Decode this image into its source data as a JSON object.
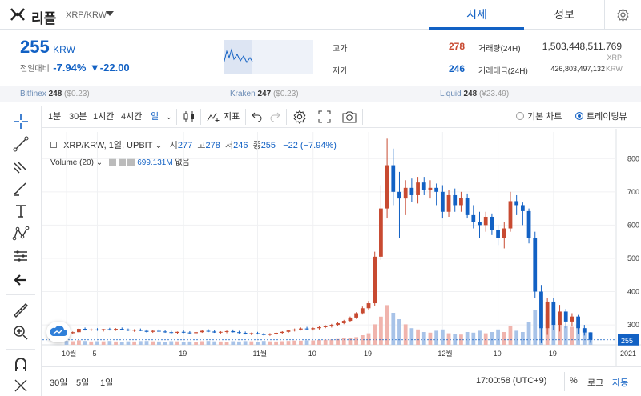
{
  "header": {
    "coin_name": "리플",
    "coin_pair": "XRP/KRW",
    "tabs": [
      {
        "label": "시세",
        "active": true
      },
      {
        "label": "정보",
        "active": false
      }
    ]
  },
  "ticker": {
    "price": "255",
    "unit": "KRW",
    "change_label": "전일대비",
    "change_pct": "-7.94%",
    "change_abs": "▼-22.00",
    "high_label": "고가",
    "high": "278",
    "low_label": "저가",
    "low": "246",
    "vol_label": "거래량(24H)",
    "vol_value": "1,503,448,511.769",
    "vol_unit": "XRP",
    "amt_label": "거래대금(24H)",
    "amt_value": "426,803,497,132",
    "amt_unit": "KRW"
  },
  "exchanges": [
    {
      "name": "Bitfinex",
      "value": "248",
      "delta": "($0.23)"
    },
    {
      "name": "Kraken",
      "value": "247",
      "delta": "($0.23)"
    },
    {
      "name": "Liquid",
      "value": "248",
      "delta": "(¥23.49)"
    }
  ],
  "toolbar": {
    "intervals": [
      "1분",
      "30분",
      "1시간",
      "4시간",
      "일"
    ],
    "indicators_label": "지표",
    "basic_chart": "기본 차트",
    "trading_view": "트레이딩뷰"
  },
  "chart_info": {
    "symbol": "XRP/KRW, 1일, UPBIT",
    "open_k": "시",
    "open": "277",
    "high_k": "고",
    "high": "278",
    "low_k": "저",
    "low": "246",
    "close_k": "종",
    "close": "255",
    "change": "−22 (−7.94%)",
    "volume_label": "Volume (20)",
    "volume_value": "699.131M",
    "volume_extra": "없음"
  },
  "bottom": {
    "ranges": [
      "30일",
      "5일",
      "1일"
    ],
    "time": "17:00:58 (UTC+9)",
    "pct": "%",
    "log": "로그",
    "auto": "자동"
  },
  "chart_data": {
    "type": "candlestick",
    "title": "XRP/KRW, 1일, UPBIT",
    "y_ticks": [
      300,
      400,
      500,
      600,
      700,
      800
    ],
    "ylim": [
      240,
      880
    ],
    "x_ticks": [
      "10월",
      "5",
      "19",
      "11월",
      "10",
      "19",
      "12월",
      "10",
      "19",
      "2021"
    ],
    "last_price": 255,
    "colors": {
      "up": "#c84a31",
      "down": "#1261c4",
      "vol_up": "#f0b4ad",
      "vol_down": "#a8c3e8"
    },
    "candles": [
      [
        277,
        279,
        272,
        275
      ],
      [
        275,
        280,
        273,
        278
      ],
      [
        278,
        290,
        276,
        288
      ],
      [
        288,
        292,
        283,
        285
      ],
      [
        285,
        289,
        281,
        286
      ],
      [
        286,
        290,
        282,
        284
      ],
      [
        284,
        288,
        280,
        287
      ],
      [
        287,
        291,
        283,
        285
      ],
      [
        285,
        290,
        282,
        288
      ],
      [
        288,
        292,
        284,
        286
      ],
      [
        286,
        289,
        281,
        283
      ],
      [
        283,
        287,
        279,
        285
      ],
      [
        285,
        289,
        281,
        282
      ],
      [
        282,
        286,
        277,
        279
      ],
      [
        279,
        284,
        276,
        282
      ],
      [
        282,
        287,
        279,
        280
      ],
      [
        280,
        284,
        276,
        278
      ],
      [
        278,
        282,
        274,
        276
      ],
      [
        276,
        280,
        272,
        279
      ],
      [
        279,
        283,
        275,
        277
      ],
      [
        277,
        281,
        273,
        275
      ],
      [
        275,
        279,
        271,
        278
      ],
      [
        278,
        284,
        276,
        282
      ],
      [
        282,
        287,
        278,
        280
      ],
      [
        280,
        284,
        276,
        277
      ],
      [
        277,
        281,
        273,
        279
      ],
      [
        279,
        283,
        275,
        281
      ],
      [
        281,
        286,
        277,
        278
      ],
      [
        278,
        282,
        274,
        276
      ],
      [
        276,
        280,
        271,
        273
      ],
      [
        273,
        277,
        269,
        275
      ],
      [
        275,
        279,
        271,
        272
      ],
      [
        272,
        276,
        268,
        270
      ],
      [
        270,
        275,
        267,
        273
      ],
      [
        273,
        278,
        270,
        276
      ],
      [
        276,
        281,
        273,
        279
      ],
      [
        279,
        285,
        276,
        283
      ],
      [
        283,
        289,
        280,
        286
      ],
      [
        286,
        292,
        283,
        289
      ],
      [
        289,
        294,
        285,
        287
      ],
      [
        287,
        292,
        283,
        290
      ],
      [
        290,
        296,
        286,
        293
      ],
      [
        293,
        299,
        290,
        296
      ],
      [
        296,
        303,
        292,
        300
      ],
      [
        300,
        308,
        296,
        305
      ],
      [
        305,
        315,
        302,
        312
      ],
      [
        312,
        325,
        309,
        322
      ],
      [
        322,
        338,
        318,
        335
      ],
      [
        335,
        355,
        331,
        350
      ],
      [
        350,
        372,
        346,
        365
      ],
      [
        365,
        520,
        358,
        505
      ],
      [
        505,
        720,
        495,
        650
      ],
      [
        650,
        860,
        620,
        780
      ],
      [
        780,
        830,
        660,
        700
      ],
      [
        700,
        760,
        560,
        680
      ],
      [
        680,
        735,
        630,
        712
      ],
      [
        712,
        740,
        670,
        690
      ],
      [
        690,
        745,
        665,
        728
      ],
      [
        728,
        745,
        690,
        705
      ],
      [
        705,
        735,
        680,
        712
      ],
      [
        712,
        725,
        660,
        700
      ],
      [
        700,
        720,
        620,
        640
      ],
      [
        640,
        705,
        625,
        690
      ],
      [
        690,
        710,
        640,
        660
      ],
      [
        660,
        700,
        640,
        682
      ],
      [
        682,
        695,
        620,
        630
      ],
      [
        630,
        660,
        590,
        610
      ],
      [
        610,
        640,
        560,
        600
      ],
      [
        600,
        640,
        580,
        625
      ],
      [
        625,
        635,
        570,
        585
      ],
      [
        585,
        600,
        540,
        560
      ],
      [
        560,
        610,
        530,
        590
      ],
      [
        590,
        700,
        580,
        672
      ],
      [
        672,
        690,
        630,
        660
      ],
      [
        660,
        668,
        600,
        642
      ],
      [
        642,
        650,
        545,
        560
      ],
      [
        560,
        580,
        380,
        400
      ],
      [
        400,
        420,
        245,
        290
      ],
      [
        290,
        380,
        270,
        370
      ],
      [
        370,
        380,
        285,
        300
      ],
      [
        300,
        360,
        280,
        340
      ],
      [
        340,
        348,
        290,
        310
      ],
      [
        310,
        335,
        295,
        325
      ],
      [
        325,
        330,
        272,
        290
      ],
      [
        290,
        300,
        268,
        277
      ],
      [
        277,
        278,
        246,
        255
      ]
    ],
    "volumes": [
      0.3,
      0.28,
      0.35,
      0.3,
      0.26,
      0.28,
      0.27,
      0.3,
      0.26,
      0.25,
      0.27,
      0.26,
      0.29,
      0.3,
      0.27,
      0.26,
      0.25,
      0.28,
      0.27,
      0.24,
      0.26,
      0.25,
      0.28,
      0.3,
      0.27,
      0.26,
      0.25,
      0.28,
      0.26,
      0.29,
      0.27,
      0.25,
      0.3,
      0.27,
      0.26,
      0.28,
      0.3,
      0.33,
      0.32,
      0.35,
      0.34,
      0.38,
      0.4,
      0.42,
      0.45,
      0.5,
      0.55,
      0.6,
      0.75,
      0.9,
      1.6,
      2.2,
      3.1,
      2.5,
      2.0,
      1.6,
      1.3,
      1.2,
      1.0,
      0.95,
      1.1,
      1.2,
      0.9,
      0.85,
      0.8,
      1.0,
      0.95,
      1.1,
      0.9,
      1.0,
      1.2,
      1.0,
      1.5,
      1.1,
      1.0,
      1.8,
      2.7,
      3.5,
      2.4,
      1.9,
      1.7,
      1.5,
      1.4,
      1.6,
      1.3,
      1.0
    ]
  }
}
